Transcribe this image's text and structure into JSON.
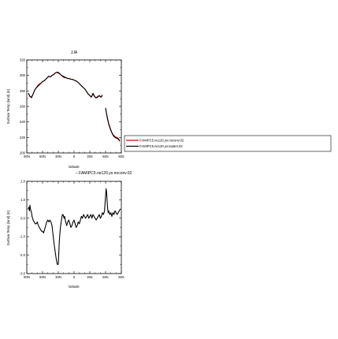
{
  "figure_title": "JJA",
  "chart_data": [
    {
      "type": "line",
      "title": "JJA",
      "xlabel": "latitude",
      "ylabel": "Surface Temp (land) (K)",
      "xlim": [
        90,
        -90
      ],
      "ylim": [
        200,
        320
      ],
      "x_ticks": [
        90,
        60,
        30,
        0,
        -30,
        -60,
        -90
      ],
      "x_tick_labels": [
        "90N",
        "60N",
        "30N",
        "0",
        "30S",
        "60S",
        "90S"
      ],
      "y_ticks": [
        200,
        220,
        240,
        260,
        280,
        300,
        320
      ],
      "y_tick_labels": [
        "200",
        "220",
        "240",
        "260",
        "280",
        "300",
        "320"
      ],
      "legend_position": "right",
      "legend": [
        "FAMIPC5.ne120.ys.noconv.02",
        "FAMIPC5.ne120.ys.tau5m.02"
      ],
      "series": [
        {
          "name": "FAMIPC5.ne120.ys.noconv.02",
          "color": "#cc0000",
          "x": [
            87,
            84,
            81,
            78,
            75,
            72,
            69,
            66,
            63,
            60,
            57,
            54,
            51,
            48,
            45,
            42,
            39,
            36,
            33,
            30,
            27,
            24,
            21,
            18,
            15,
            12,
            9,
            6,
            3,
            0,
            -3,
            -6,
            -9,
            -12,
            -15,
            -18,
            -21,
            -24,
            -27,
            -30,
            -33,
            -36,
            -39,
            -42,
            -45,
            -48,
            -51,
            -54,
            null,
            -60,
            -63,
            -66,
            -69,
            -72,
            -75,
            -78,
            -81,
            -84,
            -87
          ],
          "y": [
            277,
            273,
            271,
            276,
            281,
            284,
            287,
            289,
            290,
            292,
            293,
            295,
            297,
            299,
            298,
            300,
            301,
            303,
            304,
            303,
            302,
            300,
            298,
            297,
            297,
            296,
            296,
            295,
            295,
            294,
            293,
            292,
            290,
            288,
            286,
            284,
            282,
            279,
            276,
            274,
            272,
            276,
            273,
            271,
            273,
            274,
            272,
            275,
            null,
            257,
            247,
            238,
            232,
            226,
            223,
            221,
            220,
            219,
            216
          ]
        },
        {
          "name": "FAMIPC5.ne120.ys.tau5m.02",
          "color": "#000000",
          "x": [
            87,
            84,
            81,
            78,
            75,
            72,
            69,
            66,
            63,
            60,
            57,
            54,
            51,
            48,
            45,
            42,
            39,
            36,
            33,
            30,
            27,
            24,
            21,
            18,
            15,
            12,
            9,
            6,
            3,
            0,
            -3,
            -6,
            -9,
            -12,
            -15,
            -18,
            -21,
            -24,
            -27,
            -30,
            -33,
            -36,
            -39,
            -42,
            -45,
            -48,
            -51,
            -54,
            null,
            -60,
            -63,
            -66,
            -69,
            -72,
            -75,
            -78,
            -81,
            -84,
            -87
          ],
          "y": [
            277,
            273,
            272,
            276,
            281,
            284,
            286,
            288,
            290,
            292,
            293,
            295,
            297,
            299,
            298,
            300,
            301,
            303,
            304,
            304,
            302,
            300,
            299,
            298,
            297,
            296,
            296,
            295,
            295,
            294,
            293,
            292,
            290,
            288,
            286,
            284,
            282,
            279,
            276,
            274,
            272,
            277,
            273,
            271,
            272,
            274,
            272,
            274,
            null,
            258,
            246,
            237,
            231,
            226,
            222,
            220,
            219,
            218,
            215
          ]
        }
      ]
    },
    {
      "type": "line",
      "title": "FAMIPC5.ne120.ys.noconv.02",
      "xlabel": "latitude",
      "ylabel": "Surface Temp (land) (K)",
      "xlim": [
        90,
        -90
      ],
      "ylim": [
        -3.0,
        2.0
      ],
      "x_ticks": [
        90,
        60,
        30,
        0,
        -30,
        -60,
        -90
      ],
      "x_tick_labels": [
        "90N",
        "60N",
        "30N",
        "0",
        "30S",
        "60S",
        "90S"
      ],
      "y_ticks": [
        -3.0,
        -2.0,
        -1.0,
        0.0,
        1.0,
        2.0
      ],
      "y_tick_labels": [
        "-3.0",
        "-2.0",
        "-1.0",
        "0.0",
        "1.0",
        "2.0"
      ],
      "series": [
        {
          "color": "#000000",
          "x": [
            87,
            86,
            85,
            84,
            83,
            82,
            81,
            80,
            78,
            76,
            74,
            72,
            70,
            68,
            66,
            64,
            62,
            60,
            58,
            56,
            54,
            52,
            50,
            48,
            46,
            44,
            42,
            40,
            38,
            36,
            34,
            32,
            30,
            28,
            26,
            24,
            23,
            22,
            21,
            20,
            19,
            18,
            16,
            14,
            12,
            10,
            8,
            6,
            4,
            2,
            0,
            -2,
            -4,
            -6,
            -8,
            -10,
            -12,
            -14,
            -16,
            -18,
            -20,
            -22,
            -24,
            -26,
            -28,
            -30,
            -32,
            -34,
            -36,
            -38,
            -40,
            -42,
            -44,
            -46,
            -48,
            -50,
            -52,
            -54,
            -56,
            -58,
            -60,
            -61,
            -62,
            -63,
            -64,
            -65,
            -66,
            -68,
            -70,
            -72,
            -74,
            -76,
            -78,
            -80,
            -82,
            -84,
            -86,
            -88
          ],
          "y": [
            0.5,
            0.6,
            0.4,
            0.7,
            0.5,
            0.4,
            0.3,
            0.1,
            -0.1,
            -0.2,
            -0.3,
            -0.3,
            -0.2,
            -0.4,
            -0.5,
            -0.6,
            -0.7,
            -0.7,
            -0.8,
            -0.6,
            -0.4,
            -0.2,
            -0.1,
            -0.2,
            -0.1,
            -0.2,
            -0.4,
            -0.9,
            -1.4,
            -1.8,
            -2.2,
            -2.5,
            -2.5,
            -1.2,
            -0.5,
            -0.1,
            0.1,
            0.2,
            0.2,
            0.1,
            0.0,
            0.1,
            -0.2,
            -0.4,
            -0.2,
            -0.1,
            -0.3,
            -0.5,
            -0.4,
            -0.2,
            -0.1,
            -0.3,
            -0.5,
            -0.4,
            -0.2,
            -0.3,
            -0.1,
            0.1,
            0.0,
            0.2,
            0.1,
            0.0,
            0.1,
            0.2,
            0.0,
            0.1,
            0.2,
            0.0,
            0.2,
            0.1,
            0.0,
            -0.1,
            0.0,
            0.1,
            0.2,
            0.0,
            0.1,
            0.3,
            0.2,
            0.4,
            1.2,
            1.6,
            1.4,
            0.9,
            0.5,
            0.3,
            0.4,
            0.2,
            0.3,
            0.1,
            0.3,
            0.2,
            0.4,
            0.3,
            0.2,
            0.3,
            0.4,
            0.5
          ]
        }
      ]
    }
  ]
}
